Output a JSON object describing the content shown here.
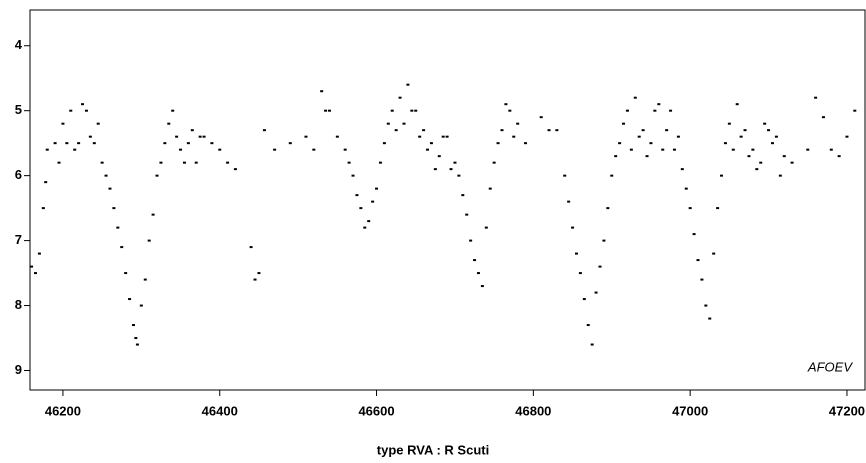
{
  "chart_data": {
    "type": "scatter",
    "xlabel": "type RVA  :  R Scuti",
    "annotation": "AFOEV",
    "xlim": [
      46158,
      47223
    ],
    "ylim": [
      9.3,
      3.45
    ],
    "xticks": [
      46200,
      46400,
      46600,
      46800,
      47000,
      47200
    ],
    "yticks": [
      4,
      5,
      6,
      7,
      8,
      9
    ],
    "color": "#000000",
    "x": [
      46160,
      46165,
      46170,
      46175,
      46178,
      46180,
      46190,
      46195,
      46200,
      46205,
      46210,
      46215,
      46220,
      46225,
      46230,
      46235,
      46240,
      46245,
      46250,
      46255,
      46260,
      46265,
      46270,
      46275,
      46280,
      46285,
      46290,
      46293,
      46295,
      46300,
      46305,
      46310,
      46315,
      46320,
      46325,
      46330,
      46335,
      46340,
      46345,
      46350,
      46355,
      46360,
      46365,
      46370,
      46375,
      46380,
      46390,
      46400,
      46410,
      46420,
      46440,
      46445,
      46450,
      46457,
      46470,
      46490,
      46510,
      46520,
      46530,
      46535,
      46540,
      46550,
      46560,
      46565,
      46570,
      46575,
      46580,
      46585,
      46590,
      46595,
      46600,
      46605,
      46610,
      46615,
      46620,
      46625,
      46630,
      46635,
      46640,
      46645,
      46650,
      46655,
      46660,
      46665,
      46670,
      46675,
      46680,
      46685,
      46690,
      46695,
      46700,
      46705,
      46710,
      46715,
      46720,
      46725,
      46730,
      46735,
      46740,
      46745,
      46750,
      46755,
      46760,
      46765,
      46770,
      46775,
      46780,
      46790,
      46810,
      46820,
      46830,
      46840,
      46845,
      46850,
      46855,
      46860,
      46865,
      46870,
      46875,
      46880,
      46885,
      46890,
      46895,
      46900,
      46905,
      46910,
      46915,
      46920,
      46925,
      46930,
      46935,
      46940,
      46945,
      46950,
      46955,
      46960,
      46965,
      46970,
      46975,
      46980,
      46985,
      46990,
      46995,
      47000,
      47005,
      47010,
      47015,
      47020,
      47025,
      47030,
      47035,
      47040,
      47045,
      47050,
      47055,
      47060,
      47065,
      47070,
      47075,
      47080,
      47085,
      47090,
      47095,
      47100,
      47105,
      47110,
      47115,
      47120,
      47130,
      47150,
      47160,
      47170,
      47180,
      47190,
      47200,
      47210
    ],
    "y": [
      7.4,
      7.5,
      7.2,
      6.5,
      6.1,
      5.6,
      5.5,
      5.8,
      5.2,
      5.5,
      5.0,
      5.6,
      5.5,
      4.9,
      5.0,
      5.4,
      5.5,
      5.2,
      5.8,
      6.0,
      6.2,
      6.5,
      6.8,
      7.1,
      7.5,
      7.9,
      8.3,
      8.5,
      8.6,
      8.0,
      7.6,
      7.0,
      6.6,
      6.0,
      5.8,
      5.5,
      5.2,
      5.0,
      5.4,
      5.6,
      5.8,
      5.5,
      5.3,
      5.8,
      5.4,
      5.4,
      5.5,
      5.6,
      5.8,
      5.9,
      7.1,
      7.6,
      7.5,
      5.3,
      5.6,
      5.5,
      5.4,
      5.6,
      4.7,
      5.0,
      5.0,
      5.4,
      5.6,
      5.8,
      6.0,
      6.3,
      6.5,
      6.8,
      6.7,
      6.4,
      6.2,
      5.8,
      5.5,
      5.2,
      5.0,
      5.3,
      4.8,
      5.2,
      4.6,
      5.0,
      5.0,
      5.4,
      5.3,
      5.6,
      5.5,
      5.9,
      5.7,
      5.4,
      5.4,
      5.9,
      5.8,
      6.0,
      6.3,
      6.6,
      7.0,
      7.3,
      7.5,
      7.7,
      6.8,
      6.2,
      5.8,
      5.5,
      5.3,
      4.9,
      5.0,
      5.4,
      5.2,
      5.5,
      5.1,
      5.3,
      5.3,
      6.0,
      6.4,
      6.8,
      7.2,
      7.5,
      7.9,
      8.3,
      8.6,
      7.8,
      7.4,
      7.0,
      6.5,
      6.0,
      5.7,
      5.5,
      5.2,
      5.0,
      5.6,
      4.8,
      5.4,
      5.3,
      5.7,
      5.5,
      5.0,
      4.9,
      5.6,
      5.3,
      5.0,
      5.6,
      5.4,
      5.9,
      6.2,
      6.5,
      6.9,
      7.3,
      7.6,
      8.0,
      8.2,
      7.2,
      6.5,
      6.0,
      5.5,
      5.2,
      5.6,
      4.9,
      5.4,
      5.3,
      5.7,
      5.6,
      5.9,
      5.8,
      5.2,
      5.3,
      5.5,
      5.4,
      6.0,
      5.7,
      5.8,
      5.6,
      4.8,
      5.1,
      5.6,
      5.7,
      5.4,
      5.0
    ]
  }
}
